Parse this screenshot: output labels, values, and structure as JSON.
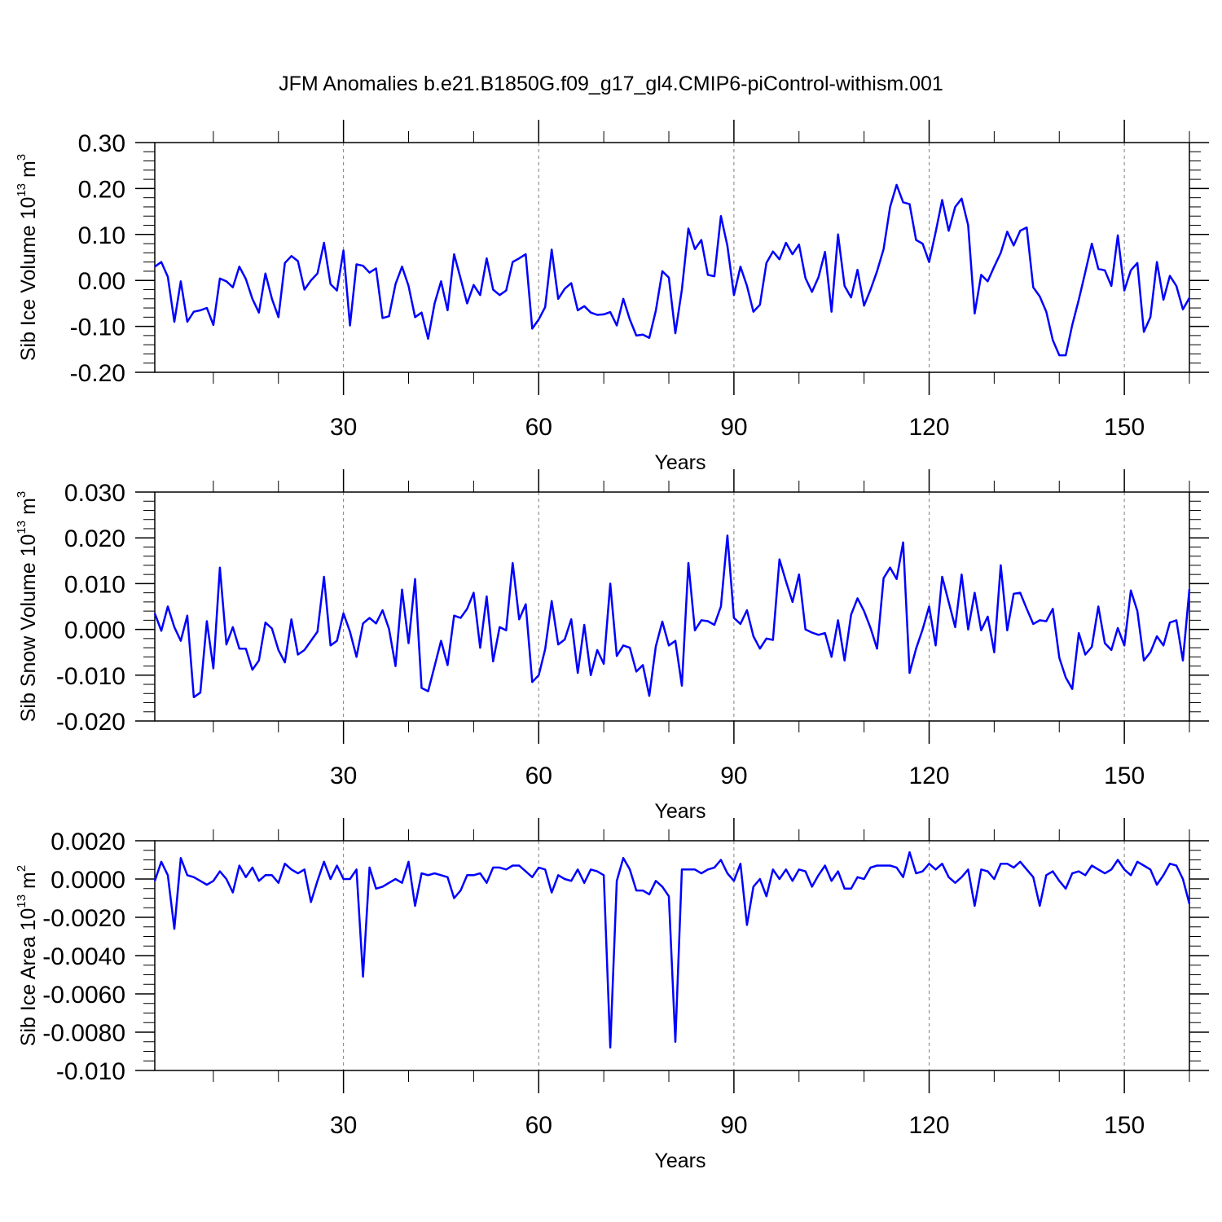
{
  "title": "JFM Anomalies b.e21.B1850G.f09_g17_gl4.CMIP6-piControl-withism.001",
  "line_color": "#0000ff",
  "frame_color": "#000000",
  "grid_color": "#808080",
  "chart_data": [
    {
      "type": "line",
      "title": "",
      "xlabel": "Years",
      "ylabel_text": "Sib Ice Volume 10",
      "ylabel_exp1": "13",
      "ylabel_unit": " m",
      "ylabel_exp2": "3",
      "xlim": [
        1,
        160
      ],
      "ylim": [
        -0.2,
        0.3
      ],
      "xticks": [
        30,
        60,
        90,
        120,
        150
      ],
      "xtick_labels": [
        "30",
        "60",
        "90",
        "120",
        "150"
      ],
      "yticks": [
        -0.2,
        -0.1,
        0.0,
        0.1,
        0.2,
        0.3
      ],
      "ytick_labels": [
        "-0.20",
        "-0.10",
        "0.00",
        "0.10",
        "0.20",
        "0.30"
      ],
      "y_minor_step": 0.02,
      "grid": "vertical dashed at major x ticks",
      "series": [
        {
          "x_start": 1,
          "x_step": 1,
          "values": [
            0.03,
            0.04,
            0.008,
            -0.09,
            -0.002,
            -0.09,
            -0.068,
            -0.065,
            -0.06,
            -0.097,
            0.004,
            -0.002,
            -0.015,
            0.03,
            0.003,
            -0.04,
            -0.07,
            0.015,
            -0.04,
            -0.08,
            0.038,
            0.053,
            0.042,
            -0.02,
            0.0,
            0.015,
            0.082,
            -0.008,
            -0.022,
            0.065,
            -0.098,
            0.035,
            0.032,
            0.017,
            0.026,
            -0.082,
            -0.078,
            -0.008,
            0.03,
            -0.012,
            -0.08,
            -0.07,
            -0.127,
            -0.05,
            -0.002,
            -0.065,
            0.057,
            0.004,
            -0.05,
            -0.01,
            -0.032,
            0.048,
            -0.02,
            -0.032,
            -0.022,
            0.04,
            0.048,
            0.057,
            -0.105,
            -0.085,
            -0.058,
            0.067,
            -0.04,
            -0.018,
            -0.006,
            -0.065,
            -0.056,
            -0.07,
            -0.075,
            -0.074,
            -0.069,
            -0.098,
            -0.04,
            -0.085,
            -0.12,
            -0.118,
            -0.125,
            -0.066,
            0.02,
            0.006,
            -0.115,
            -0.02,
            0.113,
            0.068,
            0.088,
            0.012,
            0.009,
            0.14,
            0.075,
            -0.032,
            0.03,
            -0.012,
            -0.068,
            -0.053,
            0.038,
            0.063,
            0.046,
            0.082,
            0.057,
            0.078,
            0.005,
            -0.025,
            0.007,
            0.062,
            -0.068,
            0.1,
            -0.012,
            -0.037,
            0.023,
            -0.055,
            -0.02,
            0.02,
            0.068,
            0.16,
            0.208,
            0.17,
            0.166,
            0.088,
            0.08,
            0.04,
            0.105,
            0.175,
            0.108,
            0.16,
            0.178,
            0.12,
            -0.072,
            0.012,
            -0.002,
            0.03,
            0.06,
            0.106,
            0.076,
            0.108,
            0.115,
            -0.015,
            -0.035,
            -0.068,
            -0.13,
            -0.163,
            -0.163,
            -0.097,
            -0.042,
            0.018,
            0.08,
            0.025,
            0.022,
            -0.012,
            0.098,
            -0.022,
            0.022,
            0.038,
            -0.112,
            -0.08,
            0.04,
            -0.042,
            0.01,
            -0.012,
            -0.063,
            -0.038
          ]
        }
      ]
    },
    {
      "type": "line",
      "title": "",
      "xlabel": "Years",
      "ylabel_text": "Sib Snow Volume 10",
      "ylabel_exp1": "13",
      "ylabel_unit": " m",
      "ylabel_exp2": "3",
      "xlim": [
        1,
        160
      ],
      "ylim": [
        -0.02,
        0.03
      ],
      "xticks": [
        30,
        60,
        90,
        120,
        150
      ],
      "xtick_labels": [
        "30",
        "60",
        "90",
        "120",
        "150"
      ],
      "yticks": [
        -0.02,
        -0.01,
        0.0,
        0.01,
        0.02,
        0.03
      ],
      "ytick_labels": [
        "-0.020",
        "-0.010",
        "0.000",
        "0.010",
        "0.020",
        "0.030"
      ],
      "y_minor_step": 0.002,
      "grid": "vertical dashed at major x ticks",
      "series": [
        {
          "x_start": 1,
          "x_step": 1,
          "values": [
            0.0035,
            -0.0003,
            0.005,
            0.0005,
            -0.0025,
            0.003,
            -0.0148,
            -0.0138,
            0.0018,
            -0.0085,
            0.0135,
            -0.0033,
            0.0005,
            -0.0042,
            -0.0042,
            -0.0088,
            -0.0068,
            0.0015,
            0.0002,
            -0.0045,
            -0.0072,
            0.0022,
            -0.0055,
            -0.0045,
            -0.0025,
            -0.0005,
            0.0115,
            -0.0035,
            -0.0025,
            0.0035,
            -0.0005,
            -0.006,
            0.0013,
            0.0025,
            0.0013,
            0.0042,
            0.0001,
            -0.008,
            0.0087,
            -0.003,
            0.011,
            -0.0128,
            -0.0135,
            -0.008,
            -0.0025,
            -0.0078,
            0.003,
            0.0025,
            0.0045,
            0.008,
            -0.004,
            0.0072,
            -0.007,
            0.0005,
            -0.0002,
            0.0145,
            0.0022,
            0.0055,
            -0.0115,
            -0.01,
            -0.0043,
            0.0062,
            -0.0033,
            -0.0022,
            0.0022,
            -0.0095,
            0.001,
            -0.01,
            -0.0045,
            -0.0075,
            0.01,
            -0.0058,
            -0.0035,
            -0.004,
            -0.0092,
            -0.0078,
            -0.0145,
            -0.0037,
            0.0017,
            -0.0035,
            -0.0025,
            -0.0123,
            0.0145,
            -0.0002,
            0.002,
            0.0018,
            0.001,
            0.005,
            0.0205,
            0.0025,
            0.0012,
            0.0042,
            -0.0015,
            -0.0042,
            -0.002,
            -0.0023,
            0.0153,
            0.0105,
            0.006,
            0.012,
            0.0,
            -0.0007,
            -0.0012,
            -0.0008,
            -0.006,
            0.002,
            -0.0068,
            0.0032,
            0.0068,
            0.004,
            0.0003,
            -0.0042,
            0.0112,
            0.0135,
            0.011,
            0.019,
            -0.0095,
            -0.0042,
            0.0,
            0.005,
            -0.0035,
            0.0115,
            0.006,
            0.0005,
            0.012,
            0.0,
            0.008,
            -0.0002,
            0.0028,
            -0.005,
            0.014,
            -0.0002,
            0.0078,
            0.008,
            0.0045,
            0.0012,
            0.002,
            0.0018,
            0.0045,
            -0.0062,
            -0.0105,
            -0.013,
            -0.0008,
            -0.0055,
            -0.0038,
            0.005,
            -0.003,
            -0.0045,
            0.0003,
            -0.0035,
            0.0085,
            0.004,
            -0.0068,
            -0.005,
            -0.0015,
            -0.0035,
            0.0015,
            0.002,
            -0.0068,
            0.0088
          ]
        }
      ]
    },
    {
      "type": "line",
      "title": "",
      "xlabel": "Years",
      "ylabel_text": "Sib Ice Area 10",
      "ylabel_exp1": "13",
      "ylabel_unit": " m",
      "ylabel_exp2": "2",
      "xlim": [
        1,
        160
      ],
      "ylim": [
        -0.01,
        0.002
      ],
      "xticks": [
        30,
        60,
        90,
        120,
        150
      ],
      "xtick_labels": [
        "30",
        "60",
        "90",
        "120",
        "150"
      ],
      "yticks": [
        -0.01,
        -0.008,
        -0.006,
        -0.004,
        -0.002,
        0.0,
        0.002
      ],
      "ytick_labels": [
        "-0.010",
        "-0.0080",
        "-0.0060",
        "-0.0040",
        "-0.0020",
        "0.0000",
        "0.0020"
      ],
      "y_minor_step": 0.0005,
      "grid": "vertical dashed at major x ticks",
      "series": [
        {
          "x_start": 1,
          "x_step": 1,
          "values": [
            -0.0001,
            0.0009,
            0.0002,
            -0.0026,
            0.0011,
            0.0002,
            0.0001,
            -0.0001,
            -0.0003,
            -0.0001,
            0.0004,
            0.0,
            -0.0007,
            0.0007,
            0.0001,
            0.0006,
            -0.0001,
            0.0002,
            0.0002,
            -0.0002,
            0.0008,
            0.0005,
            0.0003,
            0.0005,
            -0.0012,
            -0.0001,
            0.0009,
            0.0,
            0.0007,
            0.0,
            0.0,
            0.0005,
            -0.0051,
            0.0006,
            -0.0005,
            -0.0004,
            -0.0002,
            0.0,
            -0.0002,
            0.0009,
            -0.0014,
            0.0003,
            0.0002,
            0.0003,
            0.0002,
            0.0001,
            -0.001,
            -0.0006,
            0.0002,
            0.0002,
            0.0003,
            -0.0002,
            0.0006,
            0.0006,
            0.0005,
            0.0007,
            0.0007,
            0.0004,
            0.0001,
            0.0006,
            0.0005,
            -0.0007,
            0.0002,
            0.0,
            -0.0001,
            0.0005,
            -0.0002,
            0.0005,
            0.0004,
            0.0002,
            -0.0088,
            -0.0001,
            0.0011,
            0.0005,
            -0.0006,
            -0.0006,
            -0.0008,
            -0.0001,
            -0.0004,
            -0.0009,
            -0.0085,
            0.0005,
            0.0005,
            0.0005,
            0.0003,
            0.0005,
            0.0006,
            0.001,
            0.0003,
            -0.0001,
            0.0008,
            -0.0024,
            -0.0004,
            0.0,
            -0.0009,
            0.0005,
            0.0,
            0.0005,
            -0.0001,
            0.0005,
            0.0004,
            -0.0004,
            0.0002,
            0.0007,
            -0.0001,
            0.0004,
            -0.0005,
            -0.0005,
            0.0001,
            0.0,
            0.0006,
            0.0007,
            0.0007,
            0.0007,
            0.0006,
            0.0001,
            0.0014,
            0.0003,
            0.0004,
            0.0008,
            0.0005,
            0.0008,
            0.0001,
            -0.0002,
            0.0001,
            0.0005,
            -0.0014,
            0.0005,
            0.0004,
            0.0,
            0.0008,
            0.0008,
            0.0006,
            0.0009,
            0.0005,
            0.0001,
            -0.0014,
            0.0002,
            0.0004,
            -0.0001,
            -0.0005,
            0.0003,
            0.0004,
            0.0002,
            0.0007,
            0.0005,
            0.0003,
            0.0005,
            0.001,
            0.0005,
            0.0002,
            0.0009,
            0.0007,
            0.0005,
            -0.0003,
            0.0002,
            0.0008,
            0.0007,
            0.0,
            -0.0013
          ]
        }
      ]
    }
  ]
}
